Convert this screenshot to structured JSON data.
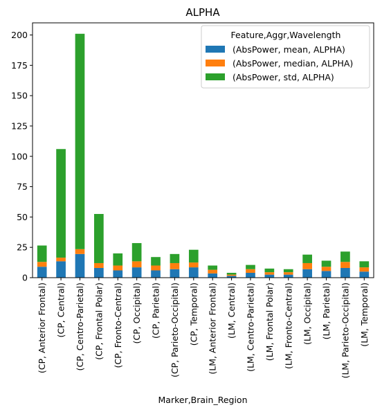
{
  "chart_data": {
    "type": "bar",
    "stacked": true,
    "title": "ALPHA",
    "xlabel": "Marker,Brain_Region",
    "ylabel": "",
    "ylim": [
      0,
      210
    ],
    "yticks": [
      0,
      25,
      50,
      75,
      100,
      125,
      150,
      175,
      200
    ],
    "grid": false,
    "legend": {
      "title": "Feature,Aggr,Wavelength",
      "placement": "top-right"
    },
    "categories": [
      "(CP, Anterior Frontal)",
      "(CP, Central)",
      "(CP, Centro-Parietal)",
      "(CP, Frontal Polar)",
      "(CP, Fronto-Central)",
      "(CP, Occipital)",
      "(CP, Parietal)",
      "(CP, Parieto-Occipital)",
      "(CP, Temporal)",
      "(LM, Anterior Frontal)",
      "(LM, Central)",
      "(LM, Centro-Parietal)",
      "(LM, Frontal Polar)",
      "(LM, Fronto-Central)",
      "(LM, Occipital)",
      "(LM, Parietal)",
      "(LM, Parieto-Occipital)",
      "(LM, Temporal)"
    ],
    "series": [
      {
        "name": "(AbsPower, mean, ALPHA)",
        "color": "#1f77b4",
        "values": [
          9,
          13.5,
          19.5,
          8,
          6,
          8.5,
          6,
          7,
          8.5,
          3.5,
          1.5,
          4,
          2.5,
          2.5,
          7,
          5.5,
          8,
          5
        ]
      },
      {
        "name": "(AbsPower, median, ALPHA)",
        "color": "#ff7f0e",
        "values": [
          4,
          3,
          4,
          4,
          4,
          5,
          4,
          5,
          4,
          3,
          1,
          3,
          2,
          2,
          5,
          3.5,
          5,
          3.5
        ]
      },
      {
        "name": "(AbsPower, std, ALPHA)",
        "color": "#2ca02c",
        "values": [
          13.5,
          89.5,
          177.5,
          40.5,
          10,
          15,
          7,
          7.5,
          10.5,
          3.5,
          1.5,
          3.5,
          3,
          2.5,
          7,
          5,
          8.5,
          5
        ]
      }
    ]
  }
}
